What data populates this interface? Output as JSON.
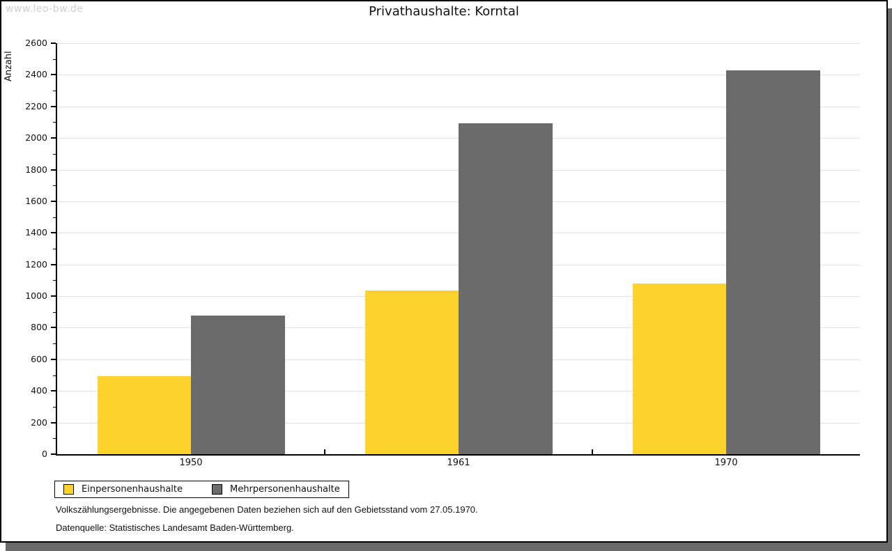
{
  "watermark": "www.leo-bw.de",
  "header": {
    "title": "Privathaushalte: Korntal"
  },
  "footnotes": {
    "line1": "Volkszählungsergebnisse. Die angegebenen Daten beziehen sich auf den Gebietsstand vom 27.05.1970.",
    "line2": "Datenquelle: Statistisches Landesamt Baden-Württemberg."
  },
  "colors": {
    "series_yellow": "#FCD32D",
    "series_gray": "#6B6B6B",
    "gridline": "#E0E0E0",
    "axis": "#000000",
    "watermark": "#CFCFCF",
    "shadow": "#6A6A6A",
    "background": "#FFFFFF"
  },
  "chart_data": {
    "type": "bar",
    "title": "Privathaushalte: Korntal",
    "xlabel": "",
    "ylabel": "Anzahl",
    "categories": [
      "1950",
      "1961",
      "1970"
    ],
    "series": [
      {
        "name": "Einpersonenhaushalte",
        "color": "#FCD32D",
        "values": [
          495,
          1035,
          1080
        ]
      },
      {
        "name": "Mehrpersonenhaushalte",
        "color": "#6B6B6B",
        "values": [
          875,
          2095,
          2430
        ]
      }
    ],
    "ylim": [
      0,
      2600
    ],
    "ytick_step": 200,
    "ytick_minor_step": 100,
    "grid": true,
    "legend_position": "bottom-left"
  }
}
